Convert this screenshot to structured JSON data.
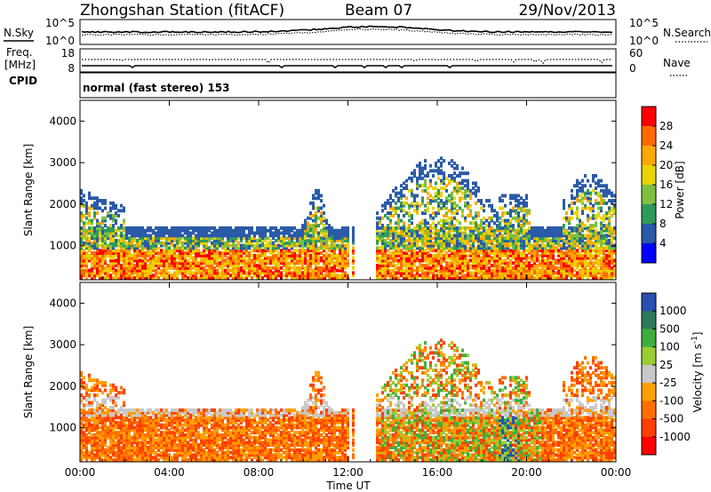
{
  "header": {
    "station": "Zhongshan Station (fitACF)",
    "beam": "Beam 07",
    "date": "29/Nov/2013"
  },
  "top_panel": {
    "left_label": "N.Sky",
    "right_label": "N.Search",
    "left_ticks": [
      "10^5",
      "10^0"
    ],
    "right_ticks": [
      "10^5",
      "10^0"
    ]
  },
  "freq_panel": {
    "left_label_line1": "Freq.",
    "left_label_line2": "[MHz]",
    "right_label": "Nave",
    "left_ticks": [
      "18",
      "8"
    ],
    "right_ticks": [
      "60",
      "0"
    ]
  },
  "cpid_panel": {
    "label": "CPID",
    "text": "normal (fast stereo) 153"
  },
  "chart_data": [
    {
      "type": "heatmap",
      "name": "power",
      "ylabel": "Slant Range [km]",
      "yticks": [
        "4000",
        "3000",
        "2000",
        "1000"
      ],
      "ylim": [
        180,
        4500
      ],
      "colorbar": {
        "label": "Power [dB]",
        "ticks": [
          "28",
          "24",
          "20",
          "16",
          "12",
          "8",
          "4"
        ],
        "colors": [
          "#ff0000",
          "#ff6a00",
          "#ffa800",
          "#e9d400",
          "#7fbf3f",
          "#2e9a5a",
          "#2a5aa8",
          "#0000ff"
        ]
      }
    },
    {
      "type": "heatmap",
      "name": "velocity",
      "ylabel": "Slant Range [km]",
      "yticks": [
        "4000",
        "3000",
        "2000",
        "1000"
      ],
      "ylim": [
        180,
        4500
      ],
      "colorbar": {
        "label": "Velocity [m s^-1]",
        "ticks": [
          "1000",
          "500",
          "100",
          "25",
          "-25",
          "-100",
          "-500",
          "-1000"
        ],
        "colors": [
          "#2a4fb0",
          "#2e7a5a",
          "#3fae3f",
          "#9acd32",
          "#c8c8c8",
          "#ffa000",
          "#ff7000",
          "#ff4000",
          "#ff0000"
        ]
      }
    }
  ],
  "time_axis": {
    "ticks": [
      "00:00",
      "04:00",
      "08:00",
      "12:00",
      "16:00",
      "20:00",
      "00:00"
    ],
    "label": "Time UT"
  },
  "colors": {
    "axes": "#000000",
    "background": "#ffffff"
  }
}
